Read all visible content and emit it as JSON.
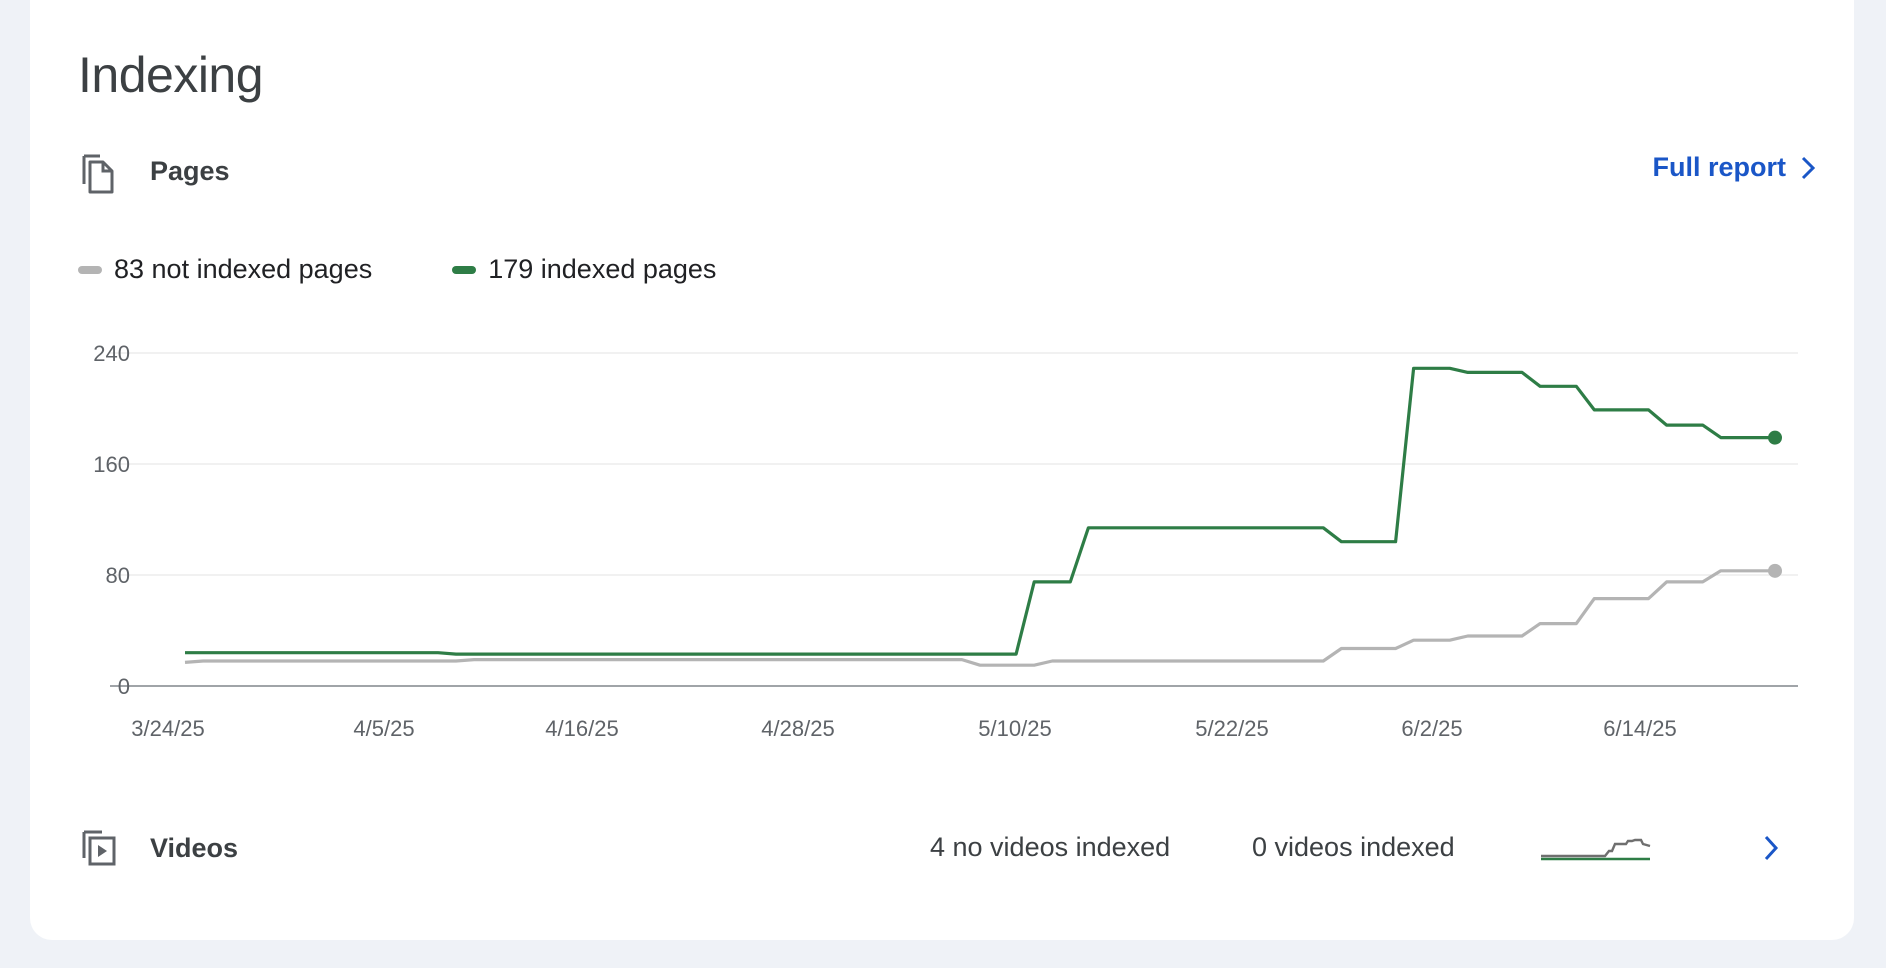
{
  "section": {
    "title": "Indexing"
  },
  "pages": {
    "label": "Pages",
    "icon": "pages-copy-icon",
    "full_report_label": "Full report"
  },
  "legend": {
    "not_indexed": "83 not indexed pages",
    "indexed": "179 indexed pages"
  },
  "colors": {
    "indexed": "#2e7d46",
    "not_indexed": "#b4b4b4",
    "link": "#1a56c7"
  },
  "chart_data": {
    "type": "line",
    "y_ticks": [
      "240",
      "160",
      "80",
      "0"
    ],
    "x_ticks": [
      "3/24/25",
      "4/5/25",
      "4/16/25",
      "4/28/25",
      "5/10/25",
      "5/22/25",
      "6/2/25",
      "6/14/25"
    ],
    "ylim": [
      0,
      240
    ],
    "grid": true,
    "series": [
      {
        "name": "not indexed pages",
        "color": "#b4b4b4",
        "points": [
          [
            0,
            17
          ],
          [
            1,
            18
          ],
          [
            15,
            18
          ],
          [
            16,
            19
          ],
          [
            43,
            19
          ],
          [
            44,
            15
          ],
          [
            47,
            15
          ],
          [
            48,
            18
          ],
          [
            63,
            18
          ],
          [
            64,
            27
          ],
          [
            67,
            27
          ],
          [
            68,
            33
          ],
          [
            70,
            33
          ],
          [
            71,
            36
          ],
          [
            74,
            36
          ],
          [
            75,
            45
          ],
          [
            77,
            45
          ],
          [
            78,
            63
          ],
          [
            81,
            63
          ],
          [
            82,
            75
          ],
          [
            84,
            75
          ],
          [
            85,
            83
          ],
          [
            88,
            83
          ]
        ]
      },
      {
        "name": "indexed pages",
        "color": "#2e7d46",
        "points": [
          [
            0,
            24
          ],
          [
            14,
            24
          ],
          [
            15,
            23
          ],
          [
            46,
            23
          ],
          [
            47,
            75
          ],
          [
            49,
            75
          ],
          [
            50,
            114
          ],
          [
            63,
            114
          ],
          [
            64,
            104
          ],
          [
            67,
            104
          ],
          [
            68,
            229
          ],
          [
            70,
            229
          ],
          [
            71,
            226
          ],
          [
            74,
            226
          ],
          [
            75,
            216
          ],
          [
            77,
            216
          ],
          [
            78,
            199
          ],
          [
            81,
            199
          ],
          [
            82,
            188
          ],
          [
            84,
            188
          ],
          [
            85,
            179
          ],
          [
            88,
            179
          ]
        ]
      }
    ]
  },
  "videos": {
    "label": "Videos",
    "icon": "video-library-icon",
    "no_videos_indexed": "4 no videos indexed",
    "videos_indexed": "0 videos indexed"
  }
}
